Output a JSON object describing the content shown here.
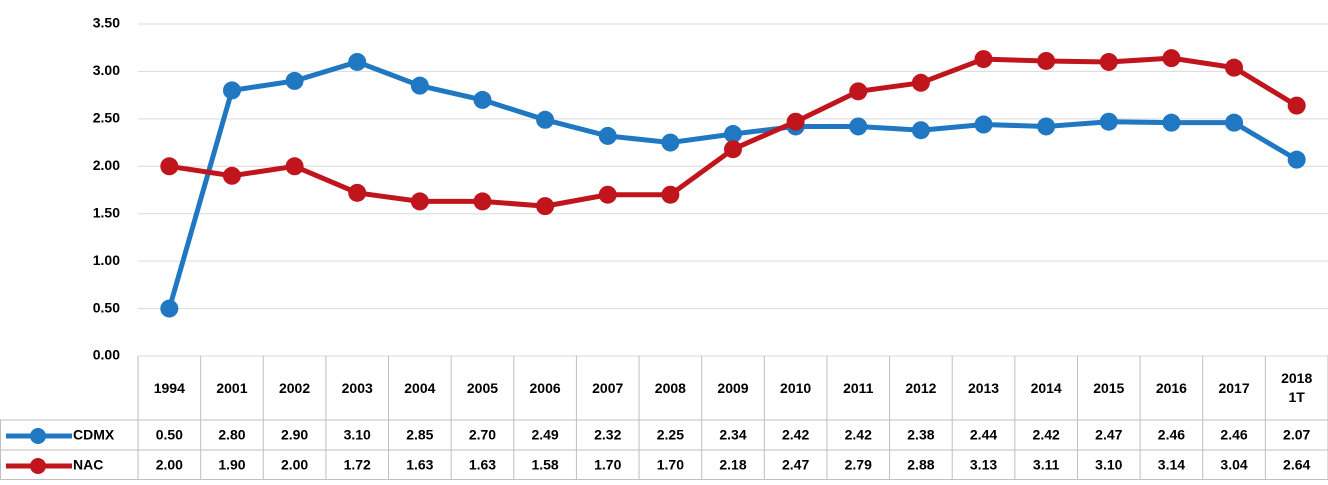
{
  "chart_data": {
    "type": "line",
    "categories": [
      "1994",
      "2001",
      "2002",
      "2003",
      "2004",
      "2005",
      "2006",
      "2007",
      "2008",
      "2009",
      "2010",
      "2011",
      "2012",
      "2013",
      "2014",
      "2015",
      "2016",
      "2017",
      "2018\n1T"
    ],
    "series": [
      {
        "name": "CDMX",
        "color": "#1f78c1",
        "values": [
          0.5,
          2.8,
          2.9,
          3.1,
          2.85,
          2.7,
          2.49,
          2.32,
          2.25,
          2.34,
          2.42,
          2.42,
          2.38,
          2.44,
          2.42,
          2.47,
          2.46,
          2.46,
          2.07
        ],
        "value_labels": [
          "0.50",
          "2.80",
          "2.90",
          "3.10",
          "2.85",
          "2.70",
          "2.49",
          "2.32",
          "2.25",
          "2.34",
          "2.42",
          "2.42",
          "2.38",
          "2.44",
          "2.42",
          "2.47",
          "2.46",
          "2.46",
          "2.07"
        ]
      },
      {
        "name": "NAC",
        "color": "#c0151c",
        "values": [
          2.0,
          1.9,
          2.0,
          1.72,
          1.63,
          1.63,
          1.58,
          1.7,
          1.7,
          2.18,
          2.47,
          2.79,
          2.88,
          3.13,
          3.11,
          3.1,
          3.14,
          3.04,
          2.64
        ],
        "value_labels": [
          "2.00",
          "1.90",
          "2.00",
          "1.72",
          "1.63",
          "1.63",
          "1.58",
          "1.70",
          "1.70",
          "2.18",
          "2.47",
          "2.79",
          "2.88",
          "3.13",
          "3.11",
          "3.10",
          "3.14",
          "3.04",
          "2.64"
        ]
      }
    ],
    "ylim": [
      0,
      3.5
    ],
    "yticks": [
      {
        "value": 0,
        "label": "0.00"
      },
      {
        "value": 0.5,
        "label": "0.50"
      },
      {
        "value": 1,
        "label": "1.00"
      },
      {
        "value": 1.5,
        "label": "1.50"
      },
      {
        "value": 2,
        "label": "2.00"
      },
      {
        "value": 2.5,
        "label": "2.50"
      },
      {
        "value": 3,
        "label": "3.00"
      },
      {
        "value": 3.5,
        "label": "3.50"
      }
    ],
    "grid": true
  }
}
